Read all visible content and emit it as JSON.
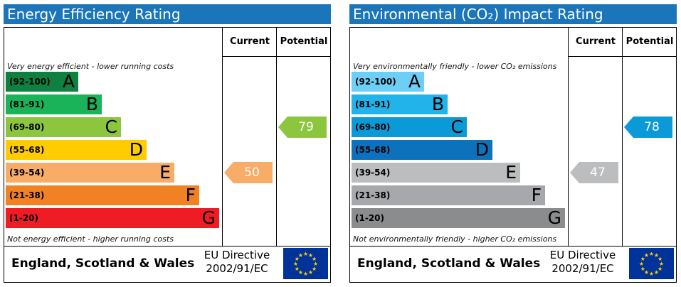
{
  "chart_data": [
    {
      "type": "bar",
      "title": "Energy Efficiency Rating",
      "columns": [
        "Current",
        "Potential"
      ],
      "top_note": "Very energy efficient - lower running costs",
      "bottom_note": "Not energy efficient - higher running costs",
      "bands": [
        {
          "range": "(92-100)",
          "letter": "A",
          "color": "#0f8040"
        },
        {
          "range": "(81-91)",
          "letter": "B",
          "color": "#1bb35a"
        },
        {
          "range": "(69-80)",
          "letter": "C",
          "color": "#8cc63e"
        },
        {
          "range": "(55-68)",
          "letter": "D",
          "color": "#ffcc00"
        },
        {
          "range": "(39-54)",
          "letter": "E",
          "color": "#f7ac68"
        },
        {
          "range": "(21-38)",
          "letter": "F",
          "color": "#f08224"
        },
        {
          "range": "(1-20)",
          "letter": "G",
          "color": "#ee1c25"
        }
      ],
      "current": {
        "value": 50,
        "band": "E",
        "color": "#f7ac68"
      },
      "potential": {
        "value": 79,
        "band": "C",
        "color": "#8cc63e"
      },
      "footer": {
        "country": "England, Scotland & Wales",
        "directive_line1": "EU Directive",
        "directive_line2": "2002/91/EC"
      }
    },
    {
      "type": "bar",
      "title": "Environmental (CO₂) Impact Rating",
      "columns": [
        "Current",
        "Potential"
      ],
      "top_note": "Very environmentally friendly - lower CO₂ emissions",
      "bottom_note": "Not environmentally friendly - higher CO₂ emissions",
      "bands": [
        {
          "range": "(92-100)",
          "letter": "A",
          "color": "#6dcff6"
        },
        {
          "range": "(81-91)",
          "letter": "B",
          "color": "#22b3ea"
        },
        {
          "range": "(69-80)",
          "letter": "C",
          "color": "#0b9ad8"
        },
        {
          "range": "(55-68)",
          "letter": "D",
          "color": "#0d72bc"
        },
        {
          "range": "(39-54)",
          "letter": "E",
          "color": "#bbbdbf"
        },
        {
          "range": "(21-38)",
          "letter": "F",
          "color": "#a6a8ab"
        },
        {
          "range": "(1-20)",
          "letter": "G",
          "color": "#8b8c8e"
        }
      ],
      "current": {
        "value": 47,
        "band": "E",
        "color": "#bbbdbf"
      },
      "potential": {
        "value": 78,
        "band": "C",
        "color": "#0b9ad8"
      },
      "footer": {
        "country": "England, Scotland & Wales",
        "directive_line1": "EU Directive",
        "directive_line2": "2002/91/EC"
      }
    }
  ]
}
